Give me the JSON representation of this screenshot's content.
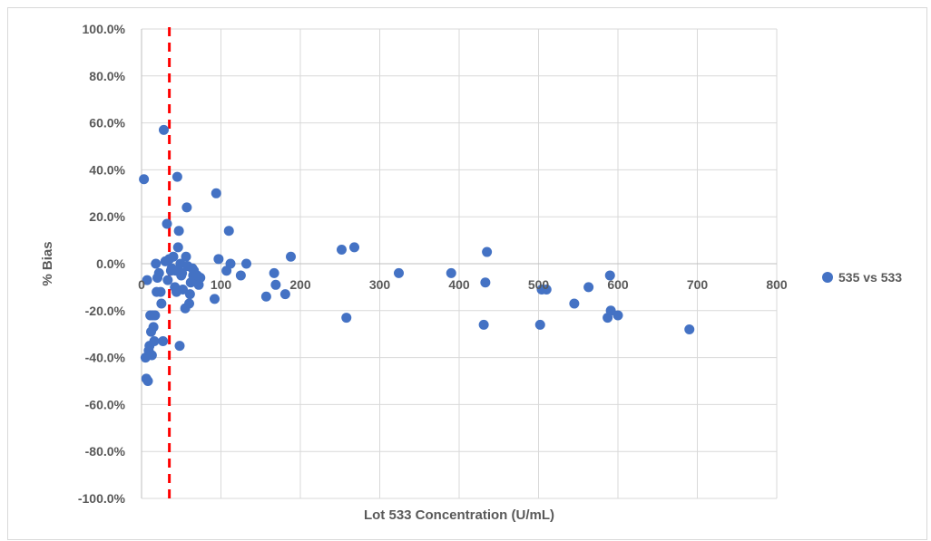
{
  "chart_data": {
    "type": "scatter",
    "title": "",
    "xlabel": "Lot 533 Concentration (U/mL)",
    "ylabel": "% Bias",
    "xlim": [
      0,
      800
    ],
    "ylim": [
      -100,
      100
    ],
    "x_ticks": [
      0,
      100,
      200,
      300,
      400,
      500,
      600,
      700,
      800
    ],
    "y_ticks": [
      100,
      80,
      60,
      40,
      20,
      0,
      -20,
      -40,
      -60,
      -80,
      -100
    ],
    "x_tick_labels": [
      "0",
      "100",
      "200",
      "300",
      "400",
      "500",
      "600",
      "700",
      "800"
    ],
    "y_tick_labels": [
      "100.0%",
      "80.0%",
      "60.0%",
      "40.0%",
      "20.0%",
      "0.0%",
      "-20.0%",
      "-40.0%",
      "-60.0%",
      "-80.0%",
      "-100.0%"
    ],
    "grid": true,
    "legend_position": "right",
    "reference_line": {
      "x": 35,
      "color": "#ff0000",
      "style": "dashed"
    },
    "series_color": "#4472c4",
    "series": [
      {
        "name": "535 vs 533",
        "points": [
          [
            3,
            36
          ],
          [
            5,
            -40
          ],
          [
            6,
            -49
          ],
          [
            7,
            -7
          ],
          [
            8,
            -50
          ],
          [
            9,
            -37
          ],
          [
            10,
            -35
          ],
          [
            11,
            -22
          ],
          [
            12,
            -29
          ],
          [
            13,
            -39
          ],
          [
            14,
            -22
          ],
          [
            15,
            -27
          ],
          [
            16,
            -33
          ],
          [
            17,
            -22
          ],
          [
            18,
            0
          ],
          [
            19,
            -12
          ],
          [
            20,
            -6
          ],
          [
            22,
            -4
          ],
          [
            24,
            -12
          ],
          [
            25,
            -17
          ],
          [
            27,
            -33
          ],
          [
            28,
            57
          ],
          [
            30,
            1
          ],
          [
            32,
            17
          ],
          [
            33,
            -7
          ],
          [
            35,
            2
          ],
          [
            37,
            -3
          ],
          [
            38,
            -2
          ],
          [
            40,
            3
          ],
          [
            42,
            -10
          ],
          [
            43,
            -3
          ],
          [
            44,
            -12
          ],
          [
            45,
            37
          ],
          [
            46,
            7
          ],
          [
            47,
            14
          ],
          [
            48,
            -35
          ],
          [
            49,
            0
          ],
          [
            50,
            -5
          ],
          [
            51,
            -4
          ],
          [
            52,
            -11
          ],
          [
            55,
            -19
          ],
          [
            56,
            3
          ],
          [
            57,
            24
          ],
          [
            58,
            -1
          ],
          [
            60,
            -17
          ],
          [
            61,
            -13
          ],
          [
            62,
            -8
          ],
          [
            64,
            -2
          ],
          [
            65,
            -5
          ],
          [
            66,
            -3
          ],
          [
            68,
            -7
          ],
          [
            70,
            -5
          ],
          [
            72,
            -9
          ],
          [
            74,
            -6
          ],
          [
            92,
            -15
          ],
          [
            94,
            30
          ],
          [
            97,
            2
          ],
          [
            107,
            -3
          ],
          [
            110,
            14
          ],
          [
            112,
            0
          ],
          [
            125,
            -5
          ],
          [
            132,
            0
          ],
          [
            157,
            -14
          ],
          [
            167,
            -4
          ],
          [
            169,
            -9
          ],
          [
            181,
            -13
          ],
          [
            188,
            3
          ],
          [
            252,
            6
          ],
          [
            258,
            -23
          ],
          [
            268,
            7
          ],
          [
            324,
            -4
          ],
          [
            390,
            -4
          ],
          [
            431,
            -26
          ],
          [
            433,
            -8
          ],
          [
            435,
            5
          ],
          [
            502,
            -26
          ],
          [
            504,
            -11
          ],
          [
            510,
            -11
          ],
          [
            545,
            -17
          ],
          [
            563,
            -10
          ],
          [
            587,
            -23
          ],
          [
            590,
            -5
          ],
          [
            591,
            -20
          ],
          [
            600,
            -22
          ],
          [
            690,
            -28
          ]
        ]
      }
    ]
  }
}
